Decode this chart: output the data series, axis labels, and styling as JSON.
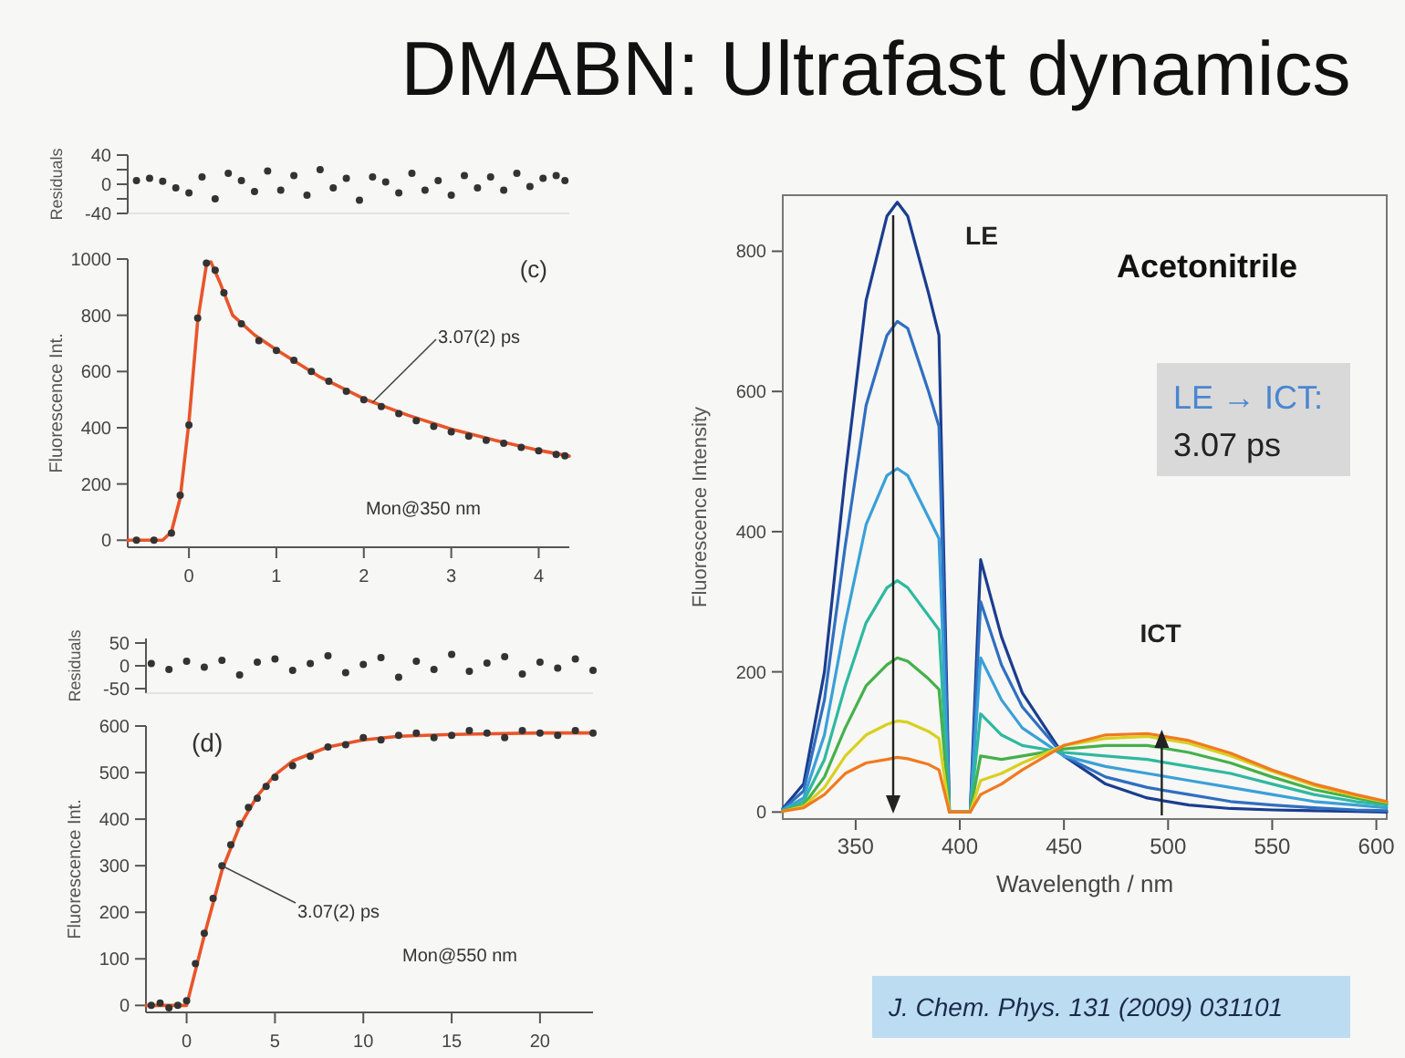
{
  "chart_data": [
    {
      "type": "scatter",
      "title": "DMABN: Ultrafast dynamics",
      "ylabel": "Residuals",
      "xlim": [
        -0.7,
        4.35
      ],
      "ylim": [
        -40,
        40
      ],
      "yticks": [
        -40,
        {
          "value": -20,
          "label": null
        },
        0,
        {
          "value": 20,
          "label": null
        },
        40
      ],
      "tick_labels": "y",
      "series": [
        {
          "type": "scatter",
          "marker": "circle",
          "color": "#333333",
          "x": [
            -0.6,
            -0.45,
            -0.3,
            -0.15,
            0,
            0.15,
            0.3,
            0.45,
            0.6,
            0.75,
            0.9,
            1.05,
            1.2,
            1.35,
            1.5,
            1.65,
            1.8,
            1.95,
            2.1,
            2.25,
            2.4,
            2.55,
            2.7,
            2.85,
            3,
            3.15,
            3.3,
            3.45,
            3.6,
            3.75,
            3.9,
            4.05,
            4.2,
            4.3
          ],
          "values": [
            5,
            8,
            4,
            -5,
            -12,
            10,
            -20,
            15,
            5,
            -10,
            18,
            -8,
            12,
            -15,
            20,
            -5,
            8,
            -22,
            10,
            3,
            -12,
            15,
            -8,
            5,
            -15,
            12,
            -5,
            10,
            -8,
            15,
            -3,
            8,
            12,
            5
          ]
        }
      ]
    },
    {
      "type": "scatter",
      "ylabel": "Fluorescence Int.",
      "xlim": [
        -0.7,
        4.35
      ],
      "ylim": [
        -25,
        1000
      ],
      "xticks": [
        0,
        1,
        2,
        3,
        4
      ],
      "yticks": [
        0,
        200,
        400,
        600,
        800,
        1000
      ],
      "annotations": [
        "(c)",
        {
          "text": "3.07(2) ps",
          "x": 2.1,
          "y": 490
        },
        "Mon@350 nm"
      ],
      "series": [
        {
          "type": "scatter",
          "marker": "circle",
          "color": "#333333",
          "x": [
            -0.6,
            -0.4,
            -0.2,
            -0.1,
            0,
            0.1,
            0.2,
            0.3,
            0.4,
            0.6,
            0.8,
            1,
            1.2,
            1.4,
            1.6,
            1.8,
            2,
            2.2,
            2.4,
            2.6,
            2.8,
            3,
            3.2,
            3.4,
            3.6,
            3.8,
            4,
            4.2,
            4.3
          ],
          "values": [
            0,
            0,
            25,
            160,
            410,
            790,
            985,
            960,
            880,
            770,
            710,
            675,
            640,
            600,
            565,
            530,
            500,
            475,
            450,
            425,
            405,
            385,
            370,
            355,
            345,
            330,
            318,
            305,
            300
          ]
        },
        {
          "type": "line",
          "color": "#e8552a",
          "x": [
            -0.7,
            -0.3,
            -0.2,
            -0.1,
            0,
            0.1,
            0.2,
            0.25,
            0.35,
            0.5,
            0.75,
            1,
            1.5,
            2,
            2.5,
            3,
            3.5,
            4,
            4.35
          ],
          "values": [
            0,
            0,
            30,
            150,
            420,
            780,
            980,
            990,
            920,
            800,
            730,
            677,
            580,
            503,
            445,
            395,
            355,
            320,
            299
          ]
        }
      ]
    },
    {
      "type": "scatter",
      "ylabel": "Residuals",
      "xlim": [
        -2.3,
        23
      ],
      "ylim": [
        -60,
        60
      ],
      "yticks": [
        -50,
        0,
        50
      ],
      "tick_labels": "y",
      "series": [
        {
          "type": "scatter",
          "marker": "circle",
          "color": "#333333",
          "x": [
            -2,
            -1,
            0,
            1,
            2,
            3,
            4,
            5,
            6,
            7,
            8,
            9,
            10,
            11,
            12,
            13,
            14,
            15,
            16,
            17,
            18,
            19,
            20,
            21,
            22,
            23
          ],
          "values": [
            5,
            -8,
            10,
            -3,
            12,
            -20,
            8,
            15,
            -10,
            5,
            22,
            -15,
            3,
            18,
            -25,
            10,
            -8,
            25,
            -12,
            6,
            20,
            -18,
            8,
            -5,
            15,
            -10
          ]
        }
      ]
    },
    {
      "type": "scatter",
      "ylabel": "Fluorescence Int.",
      "xlim": [
        -2.3,
        23
      ],
      "ylim": [
        -15,
        600
      ],
      "xticks": [
        0,
        5,
        10,
        15,
        20
      ],
      "yticks": [
        0,
        100,
        200,
        300,
        400,
        500,
        600
      ],
      "annotations": [
        "(d)",
        {
          "text": "3.07(2) ps",
          "x": 2,
          "y": 300
        },
        "Mon@550 nm"
      ],
      "series": [
        {
          "type": "scatter",
          "marker": "circle",
          "color": "#333333",
          "x": [
            -2,
            -1.5,
            -1,
            -0.5,
            0,
            0.5,
            1,
            1.5,
            2,
            2.5,
            3,
            3.5,
            4,
            4.5,
            5,
            6,
            7,
            8,
            9,
            10,
            11,
            12,
            13,
            14,
            15,
            16,
            17,
            18,
            19,
            20,
            21,
            22,
            23
          ],
          "values": [
            0,
            5,
            -5,
            0,
            10,
            90,
            155,
            230,
            300,
            345,
            390,
            425,
            445,
            470,
            490,
            515,
            535,
            555,
            560,
            575,
            570,
            580,
            585,
            575,
            580,
            590,
            585,
            575,
            590,
            585,
            580,
            590,
            585
          ]
        },
        {
          "type": "line",
          "color": "#e8552a",
          "x": [
            -2.3,
            0,
            1,
            2,
            3,
            4,
            5,
            6,
            8,
            10,
            12,
            15,
            20,
            23
          ],
          "values": [
            0,
            0,
            150,
            290,
            385,
            450,
            495,
            525,
            555,
            570,
            578,
            582,
            585,
            585
          ]
        }
      ]
    },
    {
      "type": "line",
      "xlabel": "Wavelength / nm",
      "ylabel": "Fluorescence Intensity",
      "xlim": [
        315,
        605
      ],
      "ylim": [
        -10,
        880
      ],
      "xticks": [
        350,
        400,
        450,
        500,
        550,
        600
      ],
      "yticks": [
        0,
        200,
        400,
        600,
        800
      ],
      "annotations": [
        "LE",
        "Acetonitrile",
        "LE → ICT:",
        "3.07 ps",
        "ICT",
        "J. Chem. Phys. 131 (2009) 031101"
      ],
      "x": [
        315,
        325,
        335,
        345,
        355,
        365,
        370,
        375,
        385,
        390,
        395,
        405,
        410,
        420,
        430,
        450,
        470,
        490,
        510,
        530,
        550,
        570,
        590,
        605
      ],
      "series": [
        {
          "color": "#1a3d8f",
          "values": [
            5,
            40,
            200,
            480,
            730,
            850,
            870,
            850,
            740,
            680,
            0,
            0,
            360,
            250,
            170,
            80,
            40,
            20,
            10,
            5,
            3,
            2,
            1,
            0
          ]
        },
        {
          "color": "#2f6fc0",
          "values": [
            4,
            30,
            160,
            380,
            580,
            680,
            700,
            690,
            600,
            550,
            0,
            0,
            300,
            210,
            150,
            80,
            50,
            35,
            25,
            15,
            10,
            6,
            3,
            2
          ]
        },
        {
          "color": "#3aa0d8",
          "values": [
            3,
            20,
            110,
            270,
            410,
            480,
            490,
            480,
            420,
            390,
            0,
            0,
            220,
            160,
            120,
            80,
            65,
            55,
            45,
            35,
            25,
            15,
            10,
            6
          ]
        },
        {
          "color": "#2fb8a0",
          "values": [
            2,
            15,
            75,
            180,
            270,
            320,
            330,
            320,
            280,
            260,
            0,
            0,
            140,
            110,
            95,
            85,
            80,
            75,
            65,
            55,
            40,
            25,
            15,
            10
          ]
        },
        {
          "color": "#45b04a",
          "values": [
            2,
            10,
            50,
            120,
            180,
            210,
            220,
            215,
            190,
            175,
            0,
            0,
            80,
            75,
            80,
            90,
            95,
            95,
            85,
            70,
            50,
            32,
            20,
            12
          ]
        },
        {
          "color": "#d8d020",
          "values": [
            1,
            8,
            35,
            80,
            110,
            125,
            130,
            128,
            115,
            105,
            0,
            0,
            45,
            55,
            70,
            95,
            105,
            108,
            98,
            80,
            58,
            38,
            23,
            14
          ]
        },
        {
          "color": "#f07a20",
          "values": [
            1,
            6,
            25,
            55,
            70,
            75,
            78,
            76,
            68,
            60,
            0,
            0,
            25,
            40,
            60,
            95,
            110,
            112,
            102,
            84,
            60,
            40,
            25,
            15
          ]
        }
      ]
    }
  ]
}
